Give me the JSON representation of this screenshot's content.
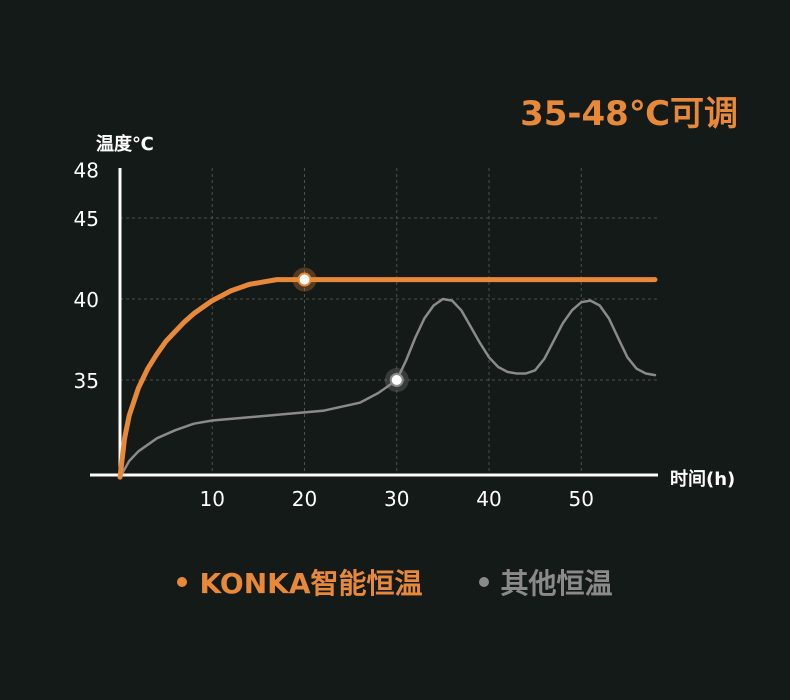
{
  "headline": "35-48℃可调",
  "colors": {
    "background": "#141a17",
    "accent": "#e8893a",
    "other": "#8a8a8a",
    "axis": "#ffffff",
    "grid": "#4a524d"
  },
  "chart_data": {
    "type": "line",
    "xlabel": "时间(h)",
    "ylabel": "温度℃",
    "xlim": [
      0,
      58
    ],
    "ylim": [
      29,
      48
    ],
    "x_ticks": [
      10,
      20,
      30,
      40,
      50
    ],
    "y_ticks": [
      35,
      40,
      45,
      48
    ],
    "grid": true,
    "legend_position": "bottom",
    "series": [
      {
        "name": "KONKA智能恒温",
        "color": "#e8893a",
        "points": [
          [
            0,
            29
          ],
          [
            0.5,
            31.4
          ],
          [
            1,
            32.8
          ],
          [
            2,
            34.5
          ],
          [
            3,
            35.7
          ],
          [
            4,
            36.6
          ],
          [
            5,
            37.4
          ],
          [
            6,
            38
          ],
          [
            7,
            38.6
          ],
          [
            8,
            39.1
          ],
          [
            9,
            39.5
          ],
          [
            10,
            39.9
          ],
          [
            11,
            40.2
          ],
          [
            12,
            40.5
          ],
          [
            13,
            40.7
          ],
          [
            14,
            40.9
          ],
          [
            15,
            41
          ],
          [
            16,
            41.1
          ],
          [
            17,
            41.2
          ],
          [
            18,
            41.2
          ],
          [
            20,
            41.2
          ],
          [
            30,
            41.2
          ],
          [
            40,
            41.2
          ],
          [
            50,
            41.2
          ],
          [
            58,
            41.2
          ]
        ],
        "markers": [
          [
            20,
            41.2
          ]
        ]
      },
      {
        "name": "其他恒温",
        "color": "#8a8a8a",
        "points": [
          [
            0,
            29
          ],
          [
            1,
            30
          ],
          [
            2,
            30.6
          ],
          [
            4,
            31.4
          ],
          [
            6,
            31.9
          ],
          [
            8,
            32.3
          ],
          [
            10,
            32.5
          ],
          [
            14,
            32.7
          ],
          [
            18,
            32.9
          ],
          [
            22,
            33.1
          ],
          [
            26,
            33.6
          ],
          [
            28,
            34.2
          ],
          [
            30,
            35
          ],
          [
            31,
            36.2
          ],
          [
            32,
            37.6
          ],
          [
            33,
            38.8
          ],
          [
            34,
            39.6
          ],
          [
            35,
            40
          ],
          [
            36,
            39.9
          ],
          [
            37,
            39.3
          ],
          [
            38,
            38.3
          ],
          [
            39,
            37.3
          ],
          [
            40,
            36.4
          ],
          [
            41,
            35.8
          ],
          [
            42,
            35.5
          ],
          [
            43,
            35.4
          ],
          [
            44,
            35.4
          ],
          [
            45,
            35.6
          ],
          [
            46,
            36.3
          ],
          [
            47,
            37.4
          ],
          [
            48,
            38.5
          ],
          [
            49,
            39.3
          ],
          [
            50,
            39.8
          ],
          [
            51,
            39.9
          ],
          [
            52,
            39.6
          ],
          [
            53,
            38.8
          ],
          [
            54,
            37.6
          ],
          [
            55,
            36.4
          ],
          [
            56,
            35.7
          ],
          [
            57,
            35.4
          ],
          [
            58,
            35.3
          ]
        ],
        "markers": [
          [
            30,
            35
          ]
        ]
      }
    ]
  }
}
